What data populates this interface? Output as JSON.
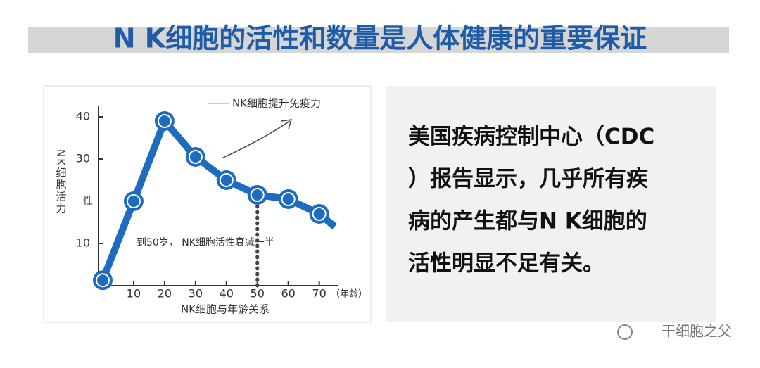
{
  "header": {
    "title": "N K细胞的活性和数量是人体健康的重要保证"
  },
  "chart_data": {
    "type": "line",
    "x": [
      0,
      10,
      20,
      30,
      40,
      50,
      60,
      70,
      75
    ],
    "series": [
      {
        "name": "NK细胞活力",
        "color": "#1e6cc0",
        "values": [
          1.3,
          20,
          39,
          30.5,
          25,
          21.5,
          20.5,
          17,
          14
        ]
      }
    ],
    "xlim": [
      0,
      76
    ],
    "ylim": [
      0,
      42.5
    ],
    "xticks": [
      10,
      20,
      30,
      40,
      50,
      60,
      70
    ],
    "yticks": [
      10,
      30,
      40
    ],
    "x_label": "NK细胞与年龄关系",
    "x_unit": "（年龄）",
    "y_label": "NK细胞活力",
    "y_label_extra": "性",
    "annotations": [
      "NK细胞提升免疫力",
      "到50岁， NK细胞活性衰减一半"
    ]
  },
  "panel": {
    "lines": [
      "美国疾病控制中心（CDC",
      "）报告显示，几乎所有疾",
      "病的产生都与N K细胞的",
      "活性明显不足有关。"
    ]
  },
  "watermark": "干细胞之父"
}
